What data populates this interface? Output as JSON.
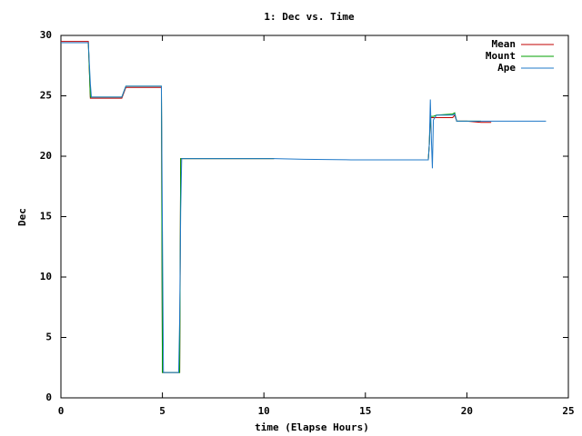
{
  "chart_data": {
    "type": "line",
    "title": "1: Dec vs. Time",
    "x_label": "time (Elapse Hours)",
    "y_label": "Dec",
    "x": [
      0,
      1.35,
      1.45,
      1.5,
      3.0,
      3.2,
      4.95,
      5.0,
      5.05,
      5.8,
      5.85,
      5.9,
      5.95,
      10.5,
      12,
      14.3,
      18.1,
      18.15,
      18.2,
      18.25,
      18.3,
      18.35,
      18.5,
      19.3,
      19.4,
      19.5,
      20.0,
      20.7,
      21.2,
      23.9
    ],
    "series": [
      {
        "name": "Mean",
        "color": "#c00000",
        "values": [
          29.5,
          29.5,
          24.8,
          24.8,
          24.8,
          25.7,
          25.7,
          2.1,
          2.1,
          2.1,
          2.1,
          19.8,
          19.8,
          19.8,
          null,
          19.7,
          19.7,
          21,
          23.2,
          23.2,
          23.2,
          23.2,
          23.2,
          23.2,
          23.4,
          22.9,
          22.9,
          22.8,
          22.8,
          null
        ]
      },
      {
        "name": "Mount",
        "color": "#00a000",
        "values": [
          29.4,
          29.4,
          24.9,
          24.9,
          24.9,
          25.8,
          25.8,
          2.1,
          2.1,
          2.1,
          2.1,
          19.8,
          19.8,
          19.8,
          null,
          19.7,
          19.7,
          21,
          23.3,
          23.3,
          23.3,
          23.3,
          23.4,
          23.5,
          23.6,
          22.9,
          22.9,
          22.9,
          null,
          null
        ]
      },
      {
        "name": "Ape",
        "color": "#1f78c8",
        "values": [
          29.4,
          29.4,
          26,
          24.9,
          24.9,
          25.8,
          25.8,
          14,
          2.1,
          2.1,
          6.6,
          15.5,
          19.8,
          19.8,
          19.75,
          19.7,
          19.7,
          21,
          24.7,
          21.5,
          19,
          23,
          23.4,
          23.4,
          23.5,
          22.9,
          22.9,
          22.9,
          22.9,
          22.9
        ]
      }
    ],
    "xlim": [
      0,
      25
    ],
    "xticks": [
      0,
      5,
      10,
      15,
      20,
      25
    ],
    "ylim": [
      0,
      30
    ],
    "yticks": [
      0,
      5,
      10,
      15,
      20,
      25,
      30
    ],
    "legend": "top-right"
  }
}
